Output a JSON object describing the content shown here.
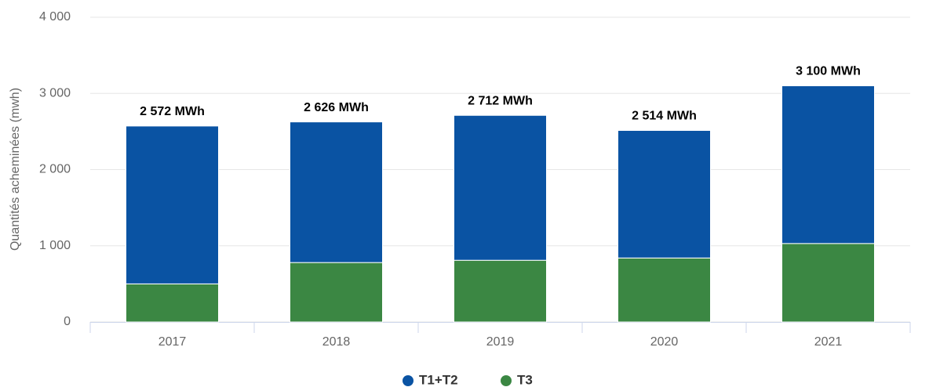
{
  "chart_data": {
    "type": "stacked_bar",
    "y_label": "Quantités acheminées (mwh)",
    "categories": [
      "2017",
      "2018",
      "2019",
      "2020",
      "2021"
    ],
    "series": [
      {
        "name": "T1+T2",
        "color": "#0a53a3",
        "values": [
          2072,
          1846,
          1902,
          1674,
          2070
        ]
      },
      {
        "name": "T3",
        "color": "#3b8743",
        "values": [
          500,
          780,
          810,
          840,
          1030
        ]
      }
    ],
    "totals": [
      2572,
      2626,
      2712,
      2514,
      3100
    ],
    "total_labels": [
      "2 572 MWh",
      "2 626 MWh",
      "2 712 MWh",
      "2 514 MWh",
      "3 100 MWh"
    ],
    "ylim": [
      0,
      4000
    ],
    "yticks": [
      0,
      {
        "value": 1000,
        "label": "1 000"
      },
      {
        "value": 2000,
        "label": "2 000"
      },
      {
        "value": 3000,
        "label": "3 000"
      },
      {
        "value": 4000,
        "label": "4 000"
      }
    ],
    "grid": true,
    "legend": "bottom"
  }
}
